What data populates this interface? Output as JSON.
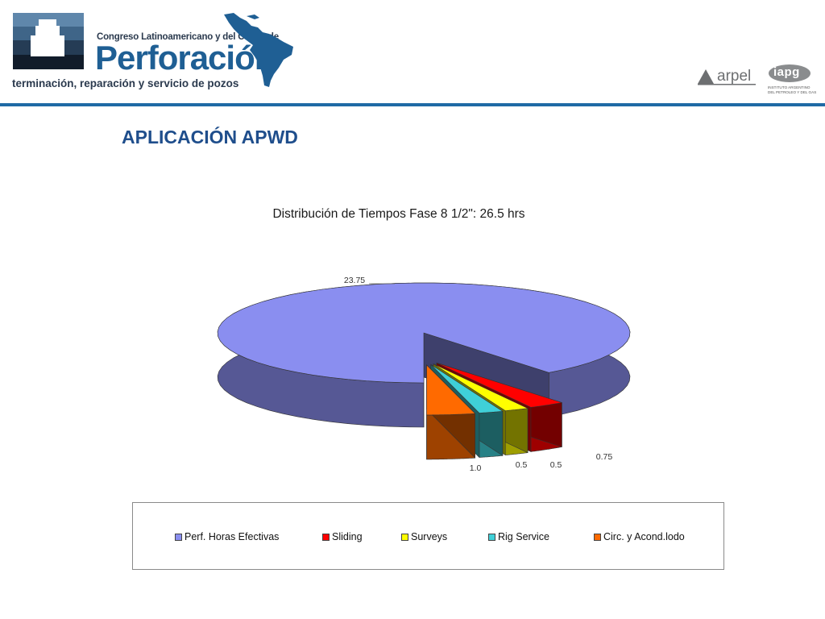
{
  "header": {
    "congreso": "Congreso Latinoamericano y del Caribe de",
    "perforacion": "Perforación",
    "tagline": "terminación, reparación y servicio de pozos",
    "arpel": "arpel",
    "iapg": "iapg",
    "iapg_sub1": "INSTITUTO ARGENTINO",
    "iapg_sub2": "DEL PETROLEO Y DEL GAS"
  },
  "slide": {
    "title": "APLICACIÓN APWD"
  },
  "colors": {
    "brand_blue": "#1f6aa5",
    "title_blue": "#1f4e8c"
  },
  "chart_data": {
    "type": "pie",
    "style": "3d-exploded",
    "title": "Distribución de Tiempos Fase 8 1/2\": 26.5 hrs",
    "total": 26.5,
    "categories": [
      "Perf. Horas Efectivas",
      "Sliding",
      "Surveys",
      "Rig Service",
      "Circ. y Acond.lodo"
    ],
    "values": [
      23.75,
      0.75,
      0.5,
      0.5,
      1.0
    ],
    "data_labels": [
      "23.75",
      "0.75",
      "0.5",
      "0.5",
      "1.0"
    ],
    "colors": [
      "#8a8ef0",
      "#ff0000",
      "#ffff00",
      "#3fd0d8",
      "#ff6a00"
    ],
    "legend_position": "bottom"
  }
}
